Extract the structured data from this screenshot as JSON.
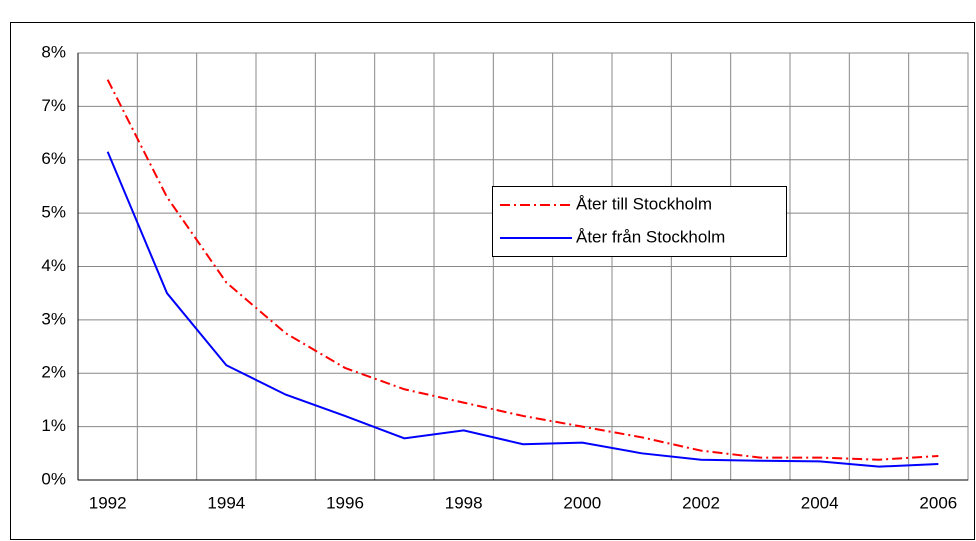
{
  "chart_data": {
    "type": "line",
    "categories": [
      "1992",
      null,
      "1994",
      null,
      "1996",
      null,
      "1998",
      null,
      "2000",
      null,
      "2002",
      null,
      "2004",
      null,
      "2006"
    ],
    "series": [
      {
        "name": "Åter till Stockholm",
        "color": "#ff0000",
        "dash": "10,4,2,4",
        "values": [
          7.5,
          5.3,
          3.7,
          2.75,
          2.1,
          1.7,
          1.45,
          1.2,
          1.0,
          0.8,
          0.55,
          0.42,
          0.42,
          0.38,
          0.45
        ]
      },
      {
        "name": "Åter från Stockholm",
        "color": "#0000ff",
        "dash": "none",
        "values": [
          6.15,
          3.5,
          2.15,
          1.6,
          1.2,
          0.78,
          0.93,
          0.67,
          0.7,
          0.5,
          0.38,
          0.36,
          0.35,
          0.25,
          0.3
        ]
      }
    ],
    "ylim": [
      0,
      8
    ],
    "yticks": [
      {
        "value": 0,
        "label": "0%"
      },
      {
        "value": 1,
        "label": "1%"
      },
      {
        "value": 2,
        "label": "2%"
      },
      {
        "value": 3,
        "label": "3%"
      },
      {
        "value": 4,
        "label": "4%"
      },
      {
        "value": 5,
        "label": "5%"
      },
      {
        "value": 6,
        "label": "6%"
      },
      {
        "value": 7,
        "label": "7%"
      },
      {
        "value": 8,
        "label": "8%"
      }
    ],
    "grid": true
  }
}
